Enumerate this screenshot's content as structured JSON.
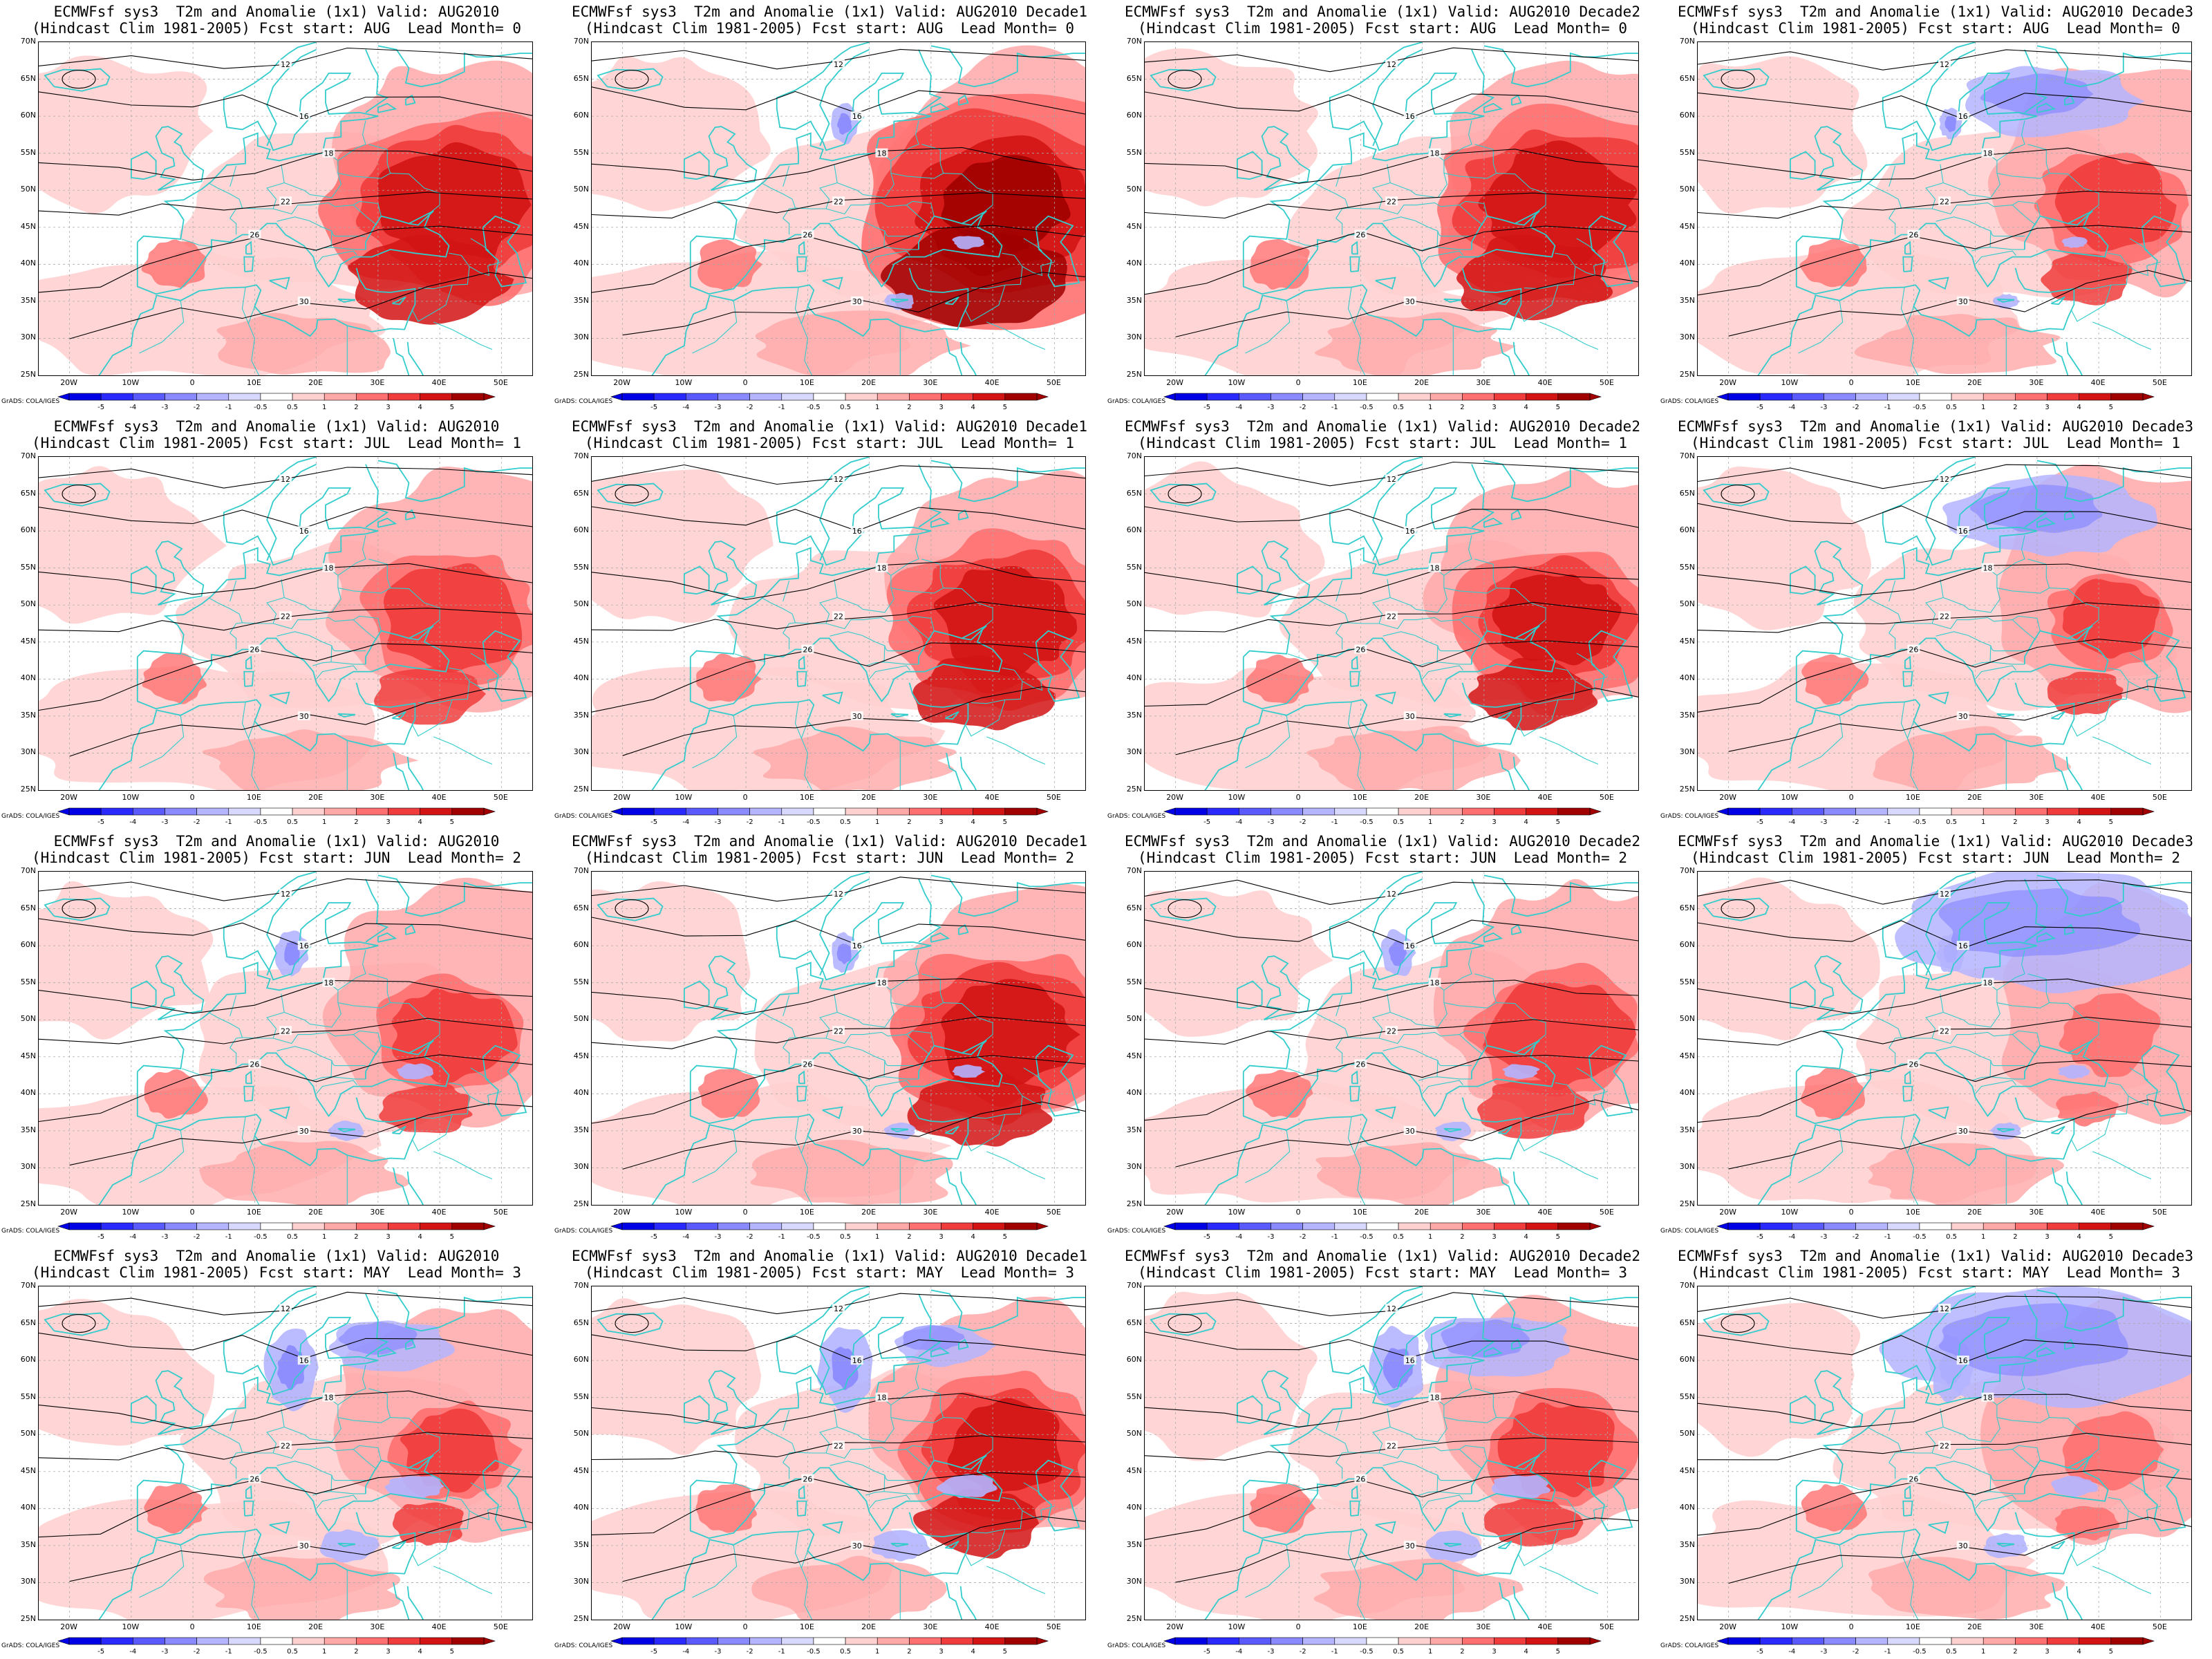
{
  "panels": [
    {
      "title1": "ECMWFsf sys3  T2m and Anomalie (1x1) Valid: AUG2010",
      "title2": "(Hindcast Clim 1981-2005) Fcst start: AUG  Lead Month= 0"
    },
    {
      "title1": "ECMWFsf sys3  T2m and Anomalie (1x1) Valid: AUG2010 Decade1",
      "title2": "(Hindcast Clim 1981-2005) Fcst start: AUG  Lead Month= 0"
    },
    {
      "title1": "ECMWFsf sys3  T2m and Anomalie (1x1) Valid: AUG2010 Decade2",
      "title2": "(Hindcast Clim 1981-2005) Fcst start: AUG  Lead Month= 0"
    },
    {
      "title1": "ECMWFsf sys3  T2m and Anomalie (1x1) Valid: AUG2010 Decade3",
      "title2": "(Hindcast Clim 1981-2005) Fcst start: AUG  Lead Month= 0"
    },
    {
      "title1": "ECMWFsf sys3  T2m and Anomalie (1x1) Valid: AUG2010",
      "title2": "(Hindcast Clim 1981-2005) Fcst start: JUL  Lead Month= 1"
    },
    {
      "title1": "ECMWFsf sys3  T2m and Anomalie (1x1) Valid: AUG2010 Decade1",
      "title2": "(Hindcast Clim 1981-2005) Fcst start: JUL  Lead Month= 1"
    },
    {
      "title1": "ECMWFsf sys3  T2m and Anomalie (1x1) Valid: AUG2010 Decade2",
      "title2": "(Hindcast Clim 1981-2005) Fcst start: JUL  Lead Month= 1"
    },
    {
      "title1": "ECMWFsf sys3  T2m and Anomalie (1x1) Valid: AUG2010 Decade3",
      "title2": "(Hindcast Clim 1981-2005) Fcst start: JUL  Lead Month= 1"
    },
    {
      "title1": "ECMWFsf sys3  T2m and Anomalie (1x1) Valid: AUG2010",
      "title2": "(Hindcast Clim 1981-2005) Fcst start: JUN  Lead Month= 2"
    },
    {
      "title1": "ECMWFsf sys3  T2m and Anomalie (1x1) Valid: AUG2010 Decade1",
      "title2": "(Hindcast Clim 1981-2005) Fcst start: JUN  Lead Month= 2"
    },
    {
      "title1": "ECMWFsf sys3  T2m and Anomalie (1x1) Valid: AUG2010 Decade2",
      "title2": "(Hindcast Clim 1981-2005) Fcst start: JUN  Lead Month= 2"
    },
    {
      "title1": "ECMWFsf sys3  T2m and Anomalie (1x1) Valid: AUG2010 Decade3",
      "title2": "(Hindcast Clim 1981-2005) Fcst start: JUN  Lead Month= 2"
    },
    {
      "title1": "ECMWFsf sys3  T2m and Anomalie (1x1) Valid: AUG2010",
      "title2": "(Hindcast Clim 1981-2005) Fcst start: MAY  Lead Month= 3"
    },
    {
      "title1": "ECMWFsf sys3  T2m and Anomalie (1x1) Valid: AUG2010 Decade1",
      "title2": "(Hindcast Clim 1981-2005) Fcst start: MAY  Lead Month= 3"
    },
    {
      "title1": "ECMWFsf sys3  T2m and Anomalie (1x1) Valid: AUG2010 Decade2",
      "title2": "(Hindcast Clim 1981-2005) Fcst start: MAY  Lead Month= 3"
    },
    {
      "title1": "ECMWFsf sys3  T2m and Anomalie (1x1) Valid: AUG2010 Decade3",
      "title2": "(Hindcast Clim 1981-2005) Fcst start: MAY  Lead Month= 3"
    }
  ],
  "lat_labels": [
    "70N",
    "65N",
    "60N",
    "55N",
    "50N",
    "45N",
    "40N",
    "35N",
    "30N",
    "25N"
  ],
  "lon_labels": [
    "20W",
    "10W",
    "0",
    "10E",
    "20E",
    "30E",
    "40E",
    "50E"
  ],
  "colorbar_labels": [
    "-5",
    "-4",
    "-3",
    "-2",
    "-1",
    "-0.5",
    "0.5",
    "1",
    "2",
    "3",
    "4",
    "5"
  ],
  "colorbar_colors": [
    "#0000e6",
    "#2a2aff",
    "#5a5aff",
    "#8a8aff",
    "#b4b4ff",
    "#d8d8ff",
    "#ffffff",
    "#ffd0d0",
    "#ffa8a8",
    "#ff7070",
    "#f03c3c",
    "#d21414",
    "#a00000"
  ],
  "contour_labels": [
    "12",
    "16",
    "18",
    "22",
    "26",
    "30"
  ],
  "credit": "GrADS: COLA/IGES",
  "colors": {
    "coast": "#33cccc",
    "contour": "#000000",
    "grid": "#aaaaaa"
  }
}
